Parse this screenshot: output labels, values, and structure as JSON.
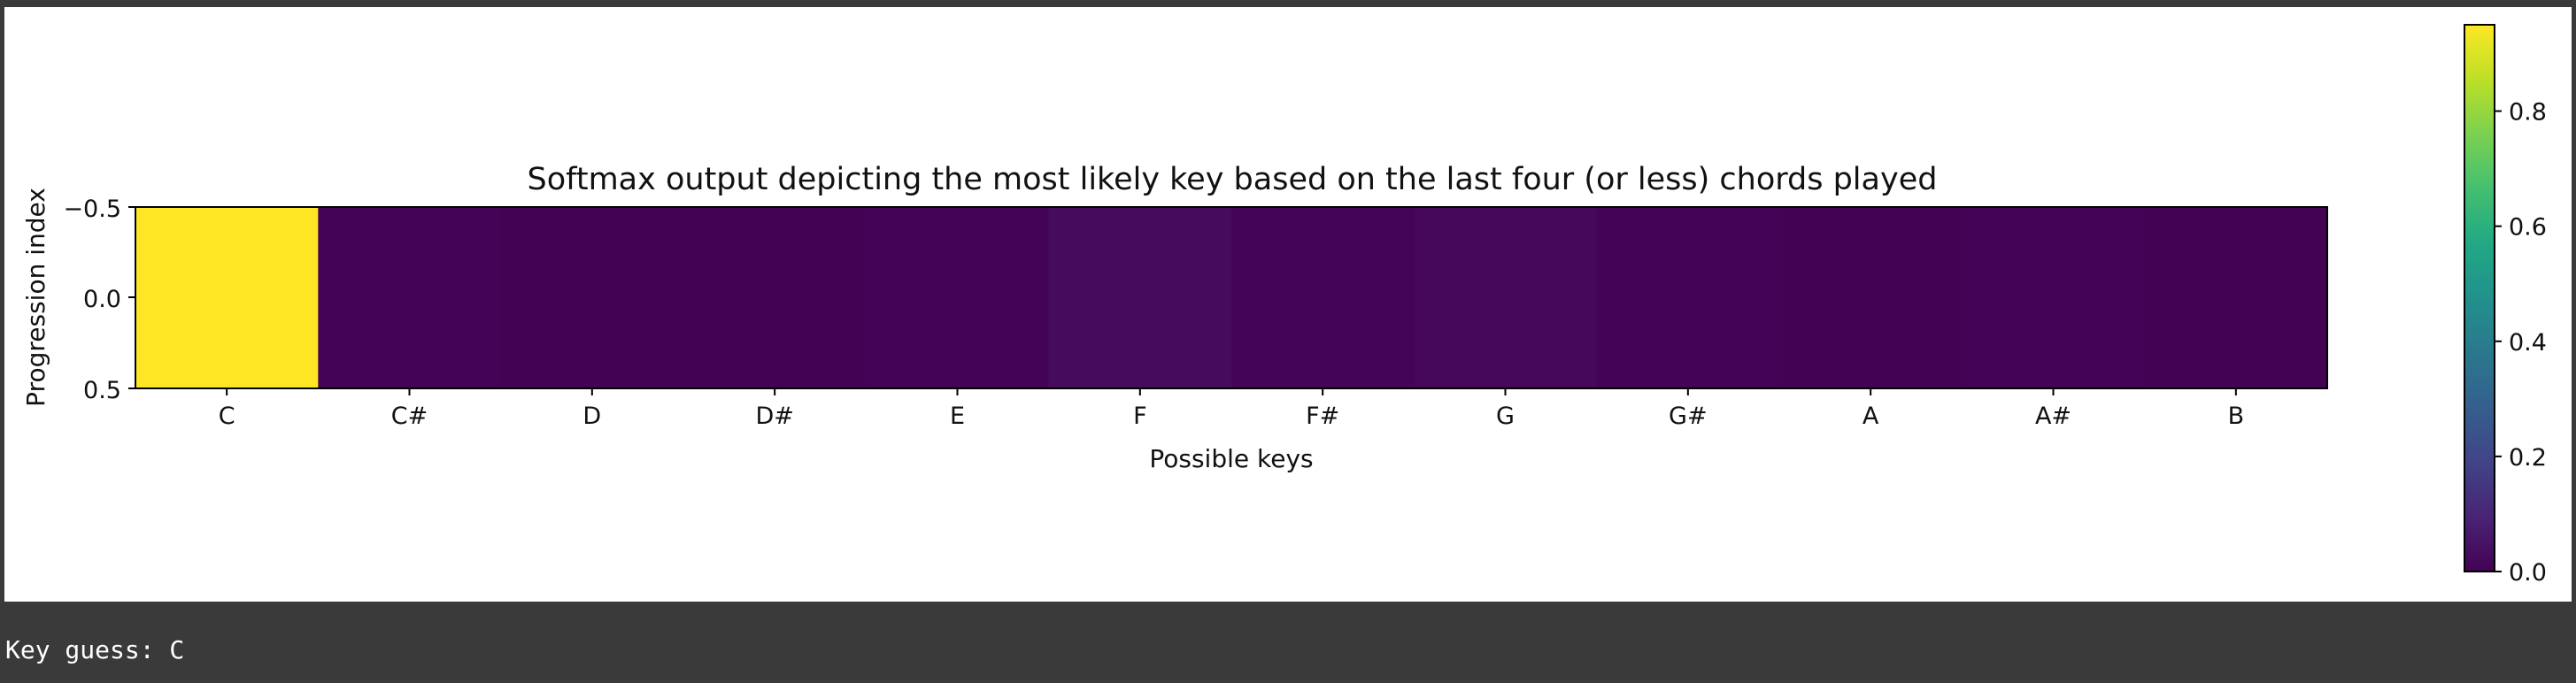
{
  "chart_data": {
    "type": "heatmap",
    "title": "Softmax output depicting the most likely key based on the last four (or less) chords played",
    "xlabel": "Possible keys",
    "ylabel": "Progression index",
    "x_categories": [
      "C",
      "C#",
      "D",
      "D#",
      "E",
      "F",
      "F#",
      "G",
      "G#",
      "A",
      "A#",
      "B"
    ],
    "y_ticks": [
      "−0.5",
      "0.0",
      "0.5"
    ],
    "values": [
      [
        0.95,
        0.005,
        0.003,
        0.004,
        0.006,
        0.03,
        0.008,
        0.02,
        0.005,
        0.004,
        0.006,
        0.003
      ]
    ],
    "colormap": "viridis",
    "colorbar": {
      "ticks": [
        0.0,
        0.2,
        0.4,
        0.6,
        0.8
      ],
      "tick_labels": [
        "0.0",
        "0.2",
        "0.4",
        "0.6",
        "0.8"
      ],
      "range": [
        0.0,
        0.95
      ]
    }
  },
  "console": {
    "output_text": "Key guess: C"
  }
}
